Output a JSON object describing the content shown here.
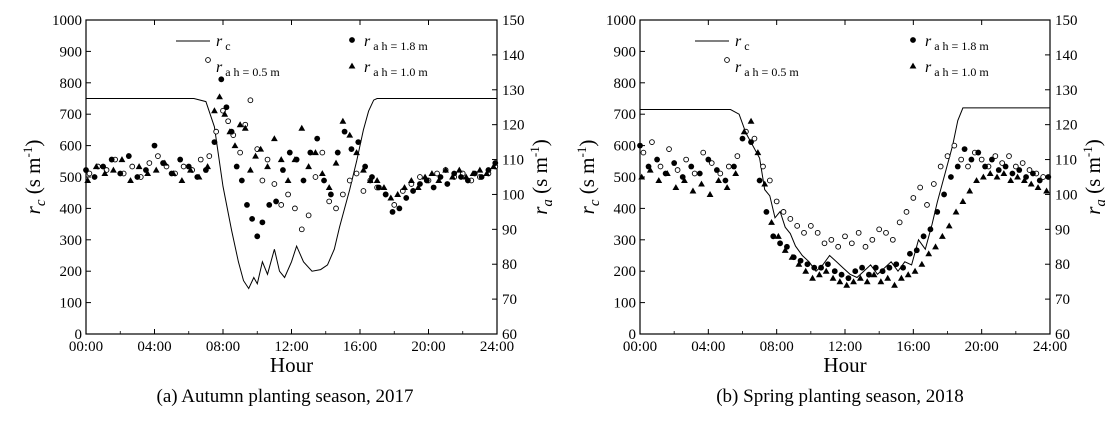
{
  "chart_data": [
    {
      "type": "scatter",
      "caption": "(a) Autumn planting season, 2017",
      "xlabel": "Hour",
      "ylabel_left": "r_c (s m^-1)",
      "ylabel_right": "r_a (s m^-1)",
      "xlim": [
        0,
        24
      ],
      "ylim_left": [
        0,
        1000
      ],
      "ylim_right": [
        60,
        150
      ],
      "x_ticks": [
        "00:00",
        "04:00",
        "08:00",
        "12:00",
        "16:00",
        "20:00",
        "24:00"
      ],
      "y_ticks_left": [
        "0",
        "100",
        "200",
        "300",
        "400",
        "500",
        "600",
        "700",
        "800",
        "900",
        "1000"
      ],
      "y_ticks_right": [
        "60",
        "70",
        "80",
        "90",
        "100",
        "110",
        "120",
        "130",
        "140",
        "150"
      ],
      "legend_position": "top",
      "series": [
        {
          "name": "r_c",
          "sym": "r",
          "sub": "c",
          "marker": "line",
          "axis": "left",
          "x": [
            0,
            6.3,
            7.0,
            7.5,
            8.0,
            8.5,
            8.9,
            9.2,
            9.5,
            9.8,
            10.0,
            10.3,
            10.6,
            11.0,
            11.3,
            11.6,
            12.0,
            12.3,
            12.7,
            13.2,
            13.7,
            14.1,
            14.5,
            14.8,
            15.1,
            15.4,
            15.8,
            16.2,
            16.5,
            16.8,
            17.0,
            24
          ],
          "y": [
            750,
            750,
            740,
            660,
            470,
            330,
            230,
            170,
            145,
            180,
            160,
            230,
            190,
            270,
            200,
            180,
            230,
            280,
            230,
            200,
            205,
            220,
            270,
            340,
            400,
            460,
            550,
            650,
            710,
            745,
            750,
            750
          ]
        },
        {
          "name": "r_a h = 0.5 m",
          "sym": "r",
          "sub": "a h = 0.5 m",
          "marker": "open-circle",
          "axis": "right",
          "x": [
            0.2,
            0.7,
            1.2,
            1.7,
            2.2,
            2.7,
            3.2,
            3.7,
            4.2,
            4.7,
            5.2,
            5.7,
            6.2,
            6.7,
            7.2,
            7.6,
            8.0,
            8.3,
            8.6,
            9.0,
            9.3,
            9.6,
            10.0,
            10.3,
            10.6,
            11.0,
            11.4,
            11.8,
            12.2,
            12.6,
            13.0,
            13.4,
            13.8,
            14.2,
            14.6,
            15.0,
            15.4,
            15.8,
            16.2,
            16.6,
            17.0,
            17.5,
            18.0,
            18.5,
            19.0,
            19.5,
            20.0,
            20.5,
            21.0,
            21.5,
            22.0,
            22.5,
            23.0,
            23.5,
            23.9
          ],
          "y": [
            106,
            108,
            107,
            110,
            106,
            108,
            105,
            109,
            111,
            108,
            106,
            108,
            107,
            110,
            111,
            118,
            124,
            121,
            117,
            112,
            120,
            127,
            113,
            104,
            110,
            103,
            97,
            100,
            96,
            90,
            94,
            105,
            112,
            98,
            96,
            100,
            104,
            106,
            101,
            104,
            102,
            100,
            97,
            101,
            103,
            105,
            104,
            106,
            107,
            105,
            106,
            104,
            105,
            106,
            108
          ]
        },
        {
          "name": "r_a h = 1.8 m",
          "sym": "r",
          "sub": "a h = 1.8 m",
          "marker": "filled-circle",
          "axis": "right",
          "x": [
            0.0,
            0.5,
            1.0,
            1.5,
            2.0,
            2.5,
            3.0,
            3.5,
            4.0,
            4.5,
            5.0,
            5.5,
            6.0,
            6.5,
            7.0,
            7.5,
            7.9,
            8.2,
            8.5,
            8.8,
            9.1,
            9.4,
            9.7,
            10.0,
            10.3,
            10.7,
            11.1,
            11.5,
            11.9,
            12.3,
            12.7,
            13.1,
            13.5,
            13.9,
            14.3,
            14.7,
            15.1,
            15.5,
            15.9,
            16.3,
            16.7,
            17.1,
            17.5,
            17.9,
            18.3,
            18.7,
            19.1,
            19.5,
            19.9,
            20.3,
            20.7,
            21.1,
            21.5,
            21.9,
            22.3,
            22.7,
            23.1,
            23.5,
            23.9
          ],
          "y": [
            107,
            105,
            108,
            110,
            106,
            111,
            105,
            107,
            114,
            109,
            106,
            110,
            108,
            105,
            107,
            115,
            133,
            125,
            118,
            108,
            104,
            97,
            93,
            88,
            92,
            97,
            98,
            107,
            112,
            110,
            104,
            112,
            116,
            104,
            100,
            112,
            118,
            113,
            115,
            108,
            105,
            102,
            100,
            95,
            96,
            99,
            101,
            103,
            104,
            102,
            105,
            103,
            106,
            105,
            104,
            106,
            105,
            107,
            109
          ]
        },
        {
          "name": "r_a h = 1.0 m",
          "sym": "r",
          "sub": "a h = 1.0 m",
          "marker": "filled-triangle",
          "axis": "right",
          "x": [
            0.1,
            0.6,
            1.1,
            1.6,
            2.1,
            2.6,
            3.1,
            3.6,
            4.1,
            4.6,
            5.1,
            5.6,
            6.1,
            6.6,
            7.1,
            7.5,
            7.8,
            8.1,
            8.4,
            8.7,
            9.0,
            9.3,
            9.6,
            9.9,
            10.2,
            10.6,
            11.0,
            11.4,
            11.8,
            12.2,
            12.6,
            13.0,
            13.4,
            13.8,
            14.2,
            14.6,
            15.0,
            15.4,
            15.8,
            16.2,
            16.6,
            17.0,
            17.4,
            17.8,
            18.2,
            18.6,
            19.0,
            19.4,
            19.8,
            20.2,
            20.6,
            21.0,
            21.4,
            21.8,
            22.2,
            22.6,
            23.0,
            23.4,
            23.8
          ],
          "y": [
            104,
            108,
            106,
            107,
            110,
            104,
            108,
            106,
            107,
            109,
            106,
            104,
            107,
            105,
            108,
            124,
            128,
            123,
            118,
            114,
            120,
            119,
            107,
            111,
            113,
            108,
            116,
            110,
            104,
            110,
            119,
            108,
            112,
            106,
            102,
            109,
            121,
            117,
            112,
            107,
            104,
            104,
            102,
            99,
            100,
            102,
            104,
            102,
            105,
            106,
            104,
            107,
            105,
            107,
            105,
            106,
            107,
            106,
            108
          ]
        }
      ]
    },
    {
      "type": "scatter",
      "caption": "(b) Spring planting season, 2018",
      "xlabel": "Hour",
      "ylabel_left": "r_c (s m^-1)",
      "ylabel_right": "r_a (s m^-1)",
      "xlim": [
        0,
        24
      ],
      "ylim_left": [
        0,
        1000
      ],
      "ylim_right": [
        60,
        150
      ],
      "x_ticks": [
        "00:00",
        "04:00",
        "08:00",
        "12:00",
        "16:00",
        "20:00",
        "24:00"
      ],
      "y_ticks_left": [
        "0",
        "100",
        "200",
        "300",
        "400",
        "500",
        "600",
        "700",
        "800",
        "900",
        "1000"
      ],
      "y_ticks_right": [
        "60",
        "70",
        "80",
        "90",
        "100",
        "110",
        "120",
        "130",
        "140",
        "150"
      ],
      "legend_position": "top",
      "series": [
        {
          "name": "r_c",
          "sym": "r",
          "sub": "c",
          "marker": "line",
          "axis": "left",
          "x": [
            0,
            5.3,
            5.8,
            6.2,
            6.6,
            7.0,
            7.3,
            7.6,
            7.9,
            8.2,
            8.5,
            8.8,
            9.1,
            9.5,
            9.9,
            10.3,
            10.7,
            11.1,
            11.5,
            11.9,
            12.3,
            12.7,
            13.1,
            13.5,
            13.9,
            14.3,
            14.7,
            15.1,
            15.5,
            15.9,
            16.3,
            16.7,
            17.1,
            17.4,
            17.7,
            18.0,
            18.3,
            18.6,
            18.9,
            24
          ],
          "y": [
            715,
            715,
            700,
            640,
            600,
            560,
            460,
            440,
            370,
            390,
            340,
            320,
            280,
            250,
            230,
            200,
            220,
            250,
            230,
            210,
            190,
            180,
            200,
            220,
            190,
            210,
            230,
            200,
            230,
            220,
            300,
            270,
            350,
            420,
            480,
            540,
            600,
            680,
            720,
            720
          ]
        },
        {
          "name": "r_a h = 0.5 m",
          "sym": "r",
          "sub": "a h = 0.5 m",
          "marker": "open-circle",
          "axis": "right",
          "x": [
            0.2,
            0.7,
            1.2,
            1.7,
            2.2,
            2.7,
            3.2,
            3.7,
            4.2,
            4.7,
            5.2,
            5.7,
            6.2,
            6.7,
            7.2,
            7.6,
            8.0,
            8.4,
            8.8,
            9.2,
            9.6,
            10.0,
            10.4,
            10.8,
            11.2,
            11.6,
            12.0,
            12.4,
            12.8,
            13.2,
            13.6,
            14.0,
            14.4,
            14.8,
            15.2,
            15.6,
            16.0,
            16.4,
            16.8,
            17.2,
            17.6,
            18.0,
            18.4,
            18.8,
            19.2,
            19.6,
            20.0,
            20.4,
            20.8,
            21.2,
            21.6,
            22.0,
            22.4,
            22.8,
            23.2,
            23.6
          ],
          "y": [
            112,
            115,
            108,
            113,
            107,
            110,
            106,
            112,
            109,
            106,
            108,
            111,
            118,
            116,
            108,
            104,
            98,
            95,
            93,
            91,
            89,
            91,
            89,
            86,
            87,
            85,
            88,
            86,
            89,
            85,
            87,
            90,
            89,
            87,
            92,
            95,
            99,
            102,
            97,
            103,
            108,
            111,
            114,
            110,
            108,
            112,
            110,
            108,
            111,
            109,
            111,
            108,
            109,
            107,
            106,
            105
          ]
        },
        {
          "name": "r_a h = 1.8 m",
          "sym": "r",
          "sub": "a h = 1.8 m",
          "marker": "filled-circle",
          "axis": "right",
          "x": [
            0.0,
            0.5,
            1.0,
            1.5,
            2.0,
            2.5,
            3.0,
            3.5,
            4.0,
            4.5,
            5.0,
            5.5,
            6.0,
            6.5,
            7.0,
            7.4,
            7.8,
            8.2,
            8.6,
            9.0,
            9.4,
            9.8,
            10.2,
            10.6,
            11.0,
            11.4,
            11.8,
            12.2,
            12.6,
            13.0,
            13.4,
            13.8,
            14.2,
            14.6,
            15.0,
            15.4,
            15.8,
            16.2,
            16.6,
            17.0,
            17.4,
            17.8,
            18.2,
            18.6,
            19.0,
            19.4,
            19.8,
            20.2,
            20.6,
            21.0,
            21.4,
            21.8,
            22.2,
            22.6,
            23.0,
            23.4,
            23.9
          ],
          "y": [
            114,
            108,
            110,
            106,
            109,
            105,
            108,
            106,
            110,
            107,
            104,
            108,
            116,
            115,
            104,
            95,
            88,
            86,
            85,
            82,
            81,
            80,
            79,
            79,
            80,
            78,
            77,
            76,
            78,
            79,
            77,
            79,
            78,
            79,
            80,
            79,
            83,
            84,
            88,
            90,
            95,
            100,
            105,
            108,
            113,
            110,
            112,
            108,
            110,
            107,
            108,
            106,
            107,
            105,
            106,
            104,
            105
          ]
        },
        {
          "name": "r_a h = 1.0 m",
          "sym": "r",
          "sub": "a h = 1.0 m",
          "marker": "filled-triangle",
          "axis": "right",
          "x": [
            0.1,
            0.6,
            1.1,
            1.6,
            2.1,
            2.6,
            3.1,
            3.6,
            4.1,
            4.6,
            5.1,
            5.6,
            6.1,
            6.5,
            6.9,
            7.3,
            7.7,
            8.1,
            8.5,
            8.9,
            9.3,
            9.7,
            10.1,
            10.5,
            10.9,
            11.3,
            11.7,
            12.1,
            12.5,
            12.9,
            13.3,
            13.7,
            14.1,
            14.5,
            14.9,
            15.3,
            15.7,
            16.1,
            16.5,
            16.9,
            17.3,
            17.7,
            18.1,
            18.5,
            18.9,
            19.3,
            19.7,
            20.1,
            20.5,
            20.9,
            21.3,
            21.7,
            22.1,
            22.5,
            22.9,
            23.3,
            23.8
          ],
          "y": [
            105,
            107,
            104,
            106,
            102,
            104,
            101,
            103,
            100,
            104,
            102,
            106,
            118,
            121,
            112,
            103,
            92,
            88,
            84,
            82,
            80,
            78,
            76,
            77,
            78,
            76,
            75,
            74,
            75,
            76,
            75,
            77,
            75,
            76,
            74,
            76,
            77,
            78,
            80,
            83,
            85,
            88,
            91,
            95,
            98,
            101,
            104,
            105,
            106,
            105,
            106,
            104,
            105,
            104,
            103,
            102,
            101
          ]
        }
      ]
    }
  ]
}
